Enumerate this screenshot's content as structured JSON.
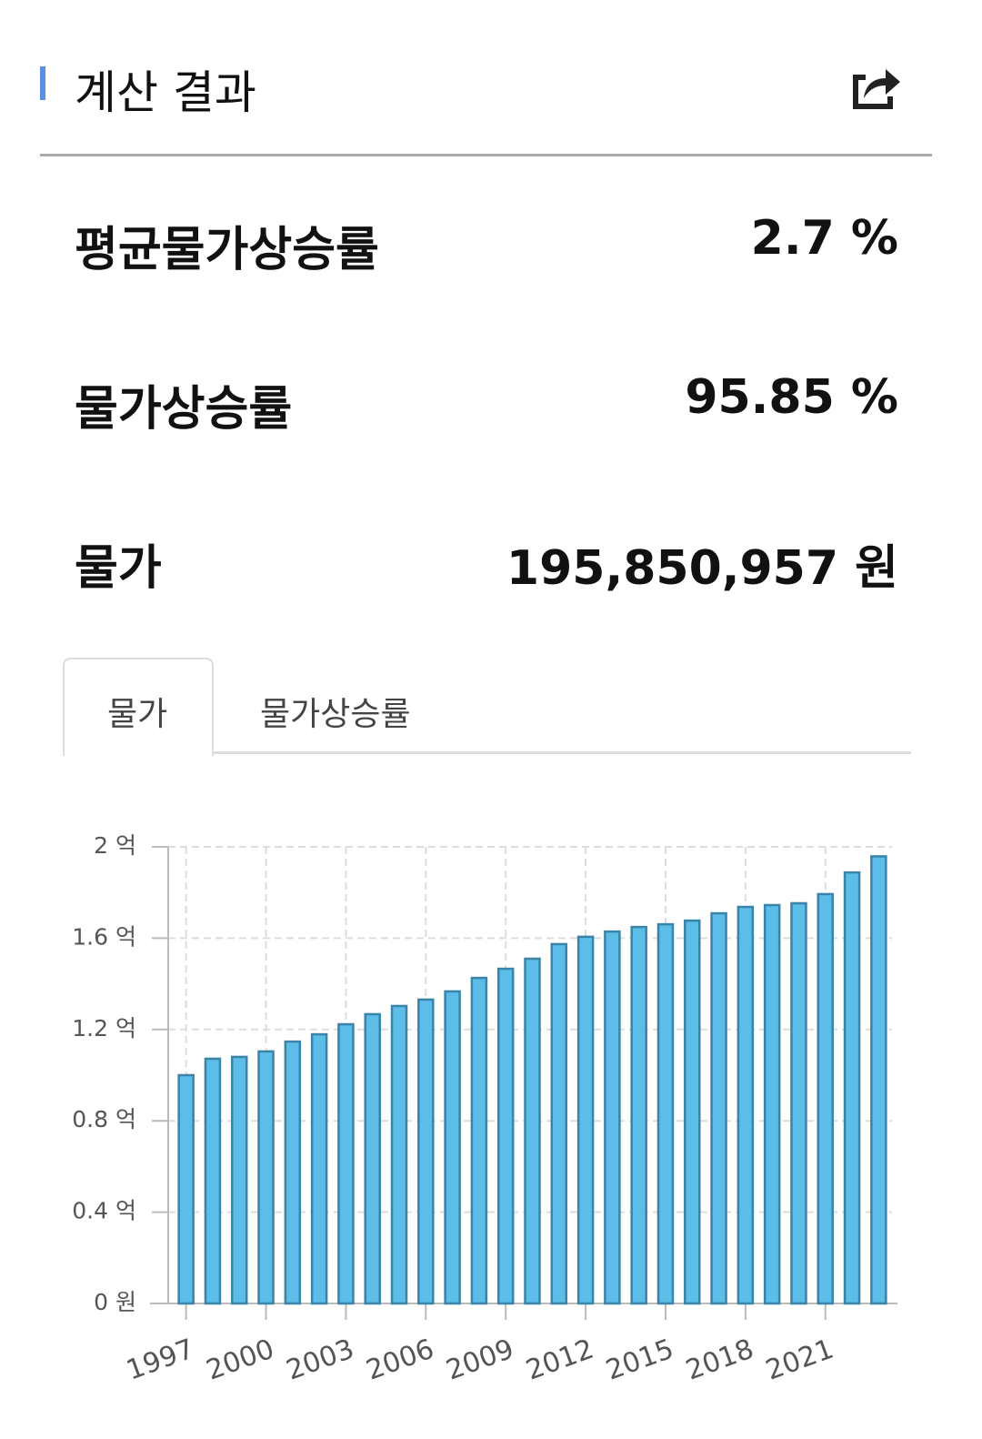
{
  "header": {
    "title": "계산 결과"
  },
  "results": [
    {
      "label": "평균물가상승률",
      "value": "2.7 %"
    },
    {
      "label": "물가상승률",
      "value": "95.85 %"
    },
    {
      "label": "물가",
      "value": "195,850,957 원"
    }
  ],
  "tabs": [
    "물가",
    "물가상승률"
  ],
  "chart_data": {
    "type": "bar",
    "categories": [
      "1997",
      null,
      null,
      "2000",
      null,
      null,
      "2003",
      null,
      null,
      "2006",
      null,
      null,
      "2009",
      null,
      null,
      "2012",
      null,
      null,
      "2015",
      null,
      null,
      "2018",
      null,
      null,
      "2021",
      null,
      null
    ],
    "values": [
      100000000,
      107200000,
      108000000,
      110400000,
      114700000,
      117900000,
      122300000,
      126700000,
      130300000,
      133100000,
      136700000,
      142600000,
      146600000,
      151000000,
      157400000,
      160600000,
      162900000,
      164900000,
      166100000,
      167700000,
      170900000,
      173700000,
      174500000,
      175300000,
      179300000,
      188800000,
      195850957
    ],
    "color": "#5bbde8",
    "ylim": [
      0,
      200000000
    ],
    "yticks": [
      {
        "value": 0,
        "label": "0 원"
      },
      {
        "value": 40000000,
        "label": "0.4 억"
      },
      {
        "value": 80000000,
        "label": "0.8 억"
      },
      {
        "value": 120000000,
        "label": "1.2 억"
      },
      {
        "value": 160000000,
        "label": "1.6 억"
      },
      {
        "value": 200000000,
        "label": "2 억"
      }
    ],
    "grid": true
  }
}
